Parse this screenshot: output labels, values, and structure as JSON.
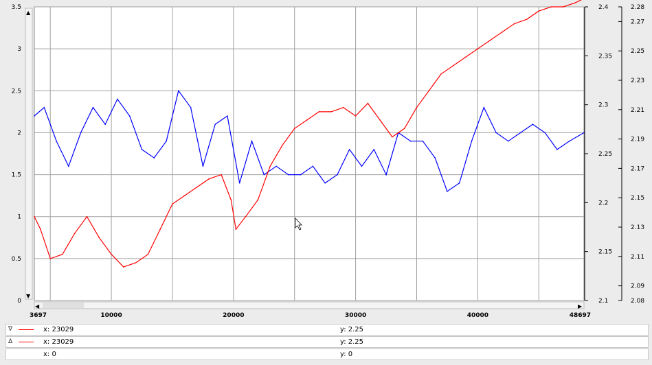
{
  "colors": {
    "background": "#ececec",
    "plot_background": "#ffffff",
    "grid": "#a0a0a0",
    "series_blue": "#0000ff",
    "series_red": "#ff0000"
  },
  "chart_data": {
    "type": "line",
    "grid": true,
    "x_range": [
      3697,
      48697
    ],
    "x_tick_labels": [
      "3697",
      "10000",
      "20000",
      "30000",
      "40000",
      "48697"
    ],
    "x_ticks": [
      3697,
      10000,
      20000,
      30000,
      40000,
      48697
    ],
    "y_left": {
      "range": [
        0,
        3.5
      ],
      "tick_labels": [
        "0",
        "0.5",
        "1",
        "1.5",
        "2",
        "2.5",
        "3",
        "3.5"
      ]
    },
    "y_mid": {
      "range": [
        2.1,
        2.4
      ],
      "tick_labels": [
        "2.1",
        "2.15",
        "2.2",
        "2.25",
        "2.3",
        "2.35",
        "2.4"
      ]
    },
    "y_right": {
      "range": [
        2.08,
        2.28
      ],
      "tick_labels": [
        "2.08",
        "2.09",
        "2.11",
        "2.13",
        "2.15",
        "2.17",
        "2.19",
        "2.21",
        "2.23",
        "2.25",
        "2.27",
        "2.28"
      ]
    },
    "series": [
      {
        "axis": "left",
        "color": "#0000ff",
        "x": [
          3697,
          4500,
          5500,
          6500,
          7500,
          8500,
          9500,
          10500,
          11500,
          12500,
          13500,
          14500,
          15500,
          16500,
          17500,
          18500,
          19500,
          20500,
          21500,
          22500,
          23500,
          24500,
          25500,
          26500,
          27500,
          28500,
          29500,
          30500,
          31500,
          32500,
          33500,
          34500,
          35500,
          36500,
          37500,
          38500,
          39500,
          40500,
          41500,
          42500,
          43500,
          44500,
          45500,
          46500,
          47500,
          48697
        ],
        "y": [
          2.2,
          2.3,
          1.9,
          1.6,
          2.0,
          2.3,
          2.1,
          2.4,
          2.2,
          1.8,
          1.7,
          1.9,
          2.5,
          2.3,
          1.6,
          2.1,
          2.2,
          1.4,
          1.9,
          1.5,
          1.6,
          1.5,
          1.5,
          1.6,
          1.4,
          1.5,
          1.8,
          1.6,
          1.8,
          1.5,
          2.0,
          1.9,
          1.9,
          1.7,
          1.3,
          1.4,
          1.9,
          2.3,
          2.0,
          1.9,
          2.0,
          2.1,
          2.0,
          1.8,
          1.9,
          2.0
        ]
      },
      {
        "axis": "left",
        "color": "#ff0000",
        "x": [
          3697,
          4200,
          5000,
          6000,
          7000,
          8000,
          9000,
          10000,
          11000,
          12000,
          13000,
          14000,
          15000,
          16000,
          17000,
          18000,
          19000,
          19800,
          20200,
          21000,
          22000,
          23000,
          24000,
          25000,
          26000,
          27000,
          28000,
          29000,
          30000,
          31000,
          32000,
          33000,
          34000,
          35000,
          36000,
          37000,
          38000,
          39000,
          40000,
          41000,
          42000,
          43000,
          44000,
          45000,
          46000,
          47000,
          48000,
          48697
        ],
        "y": [
          1.0,
          0.85,
          0.5,
          0.55,
          0.8,
          1.0,
          0.75,
          0.55,
          0.4,
          0.45,
          0.55,
          0.85,
          1.15,
          1.25,
          1.35,
          1.45,
          1.5,
          1.2,
          0.85,
          1.0,
          1.2,
          1.6,
          1.85,
          2.05,
          2.15,
          2.25,
          2.25,
          2.3,
          2.2,
          2.35,
          2.15,
          1.95,
          2.05,
          2.3,
          2.5,
          2.7,
          2.8,
          2.9,
          3.0,
          3.1,
          3.2,
          3.3,
          3.35,
          3.45,
          3.5,
          3.5,
          3.55,
          3.6
        ]
      }
    ],
    "cursor_readout": [
      {
        "marker": "∇",
        "x": "x: 23029",
        "y": "y: 2.25"
      },
      {
        "marker": "Δ",
        "x": "x: 23029",
        "y": "y: 2.25"
      },
      {
        "marker": "",
        "x": "x: 0",
        "y": "y: 0"
      }
    ]
  }
}
